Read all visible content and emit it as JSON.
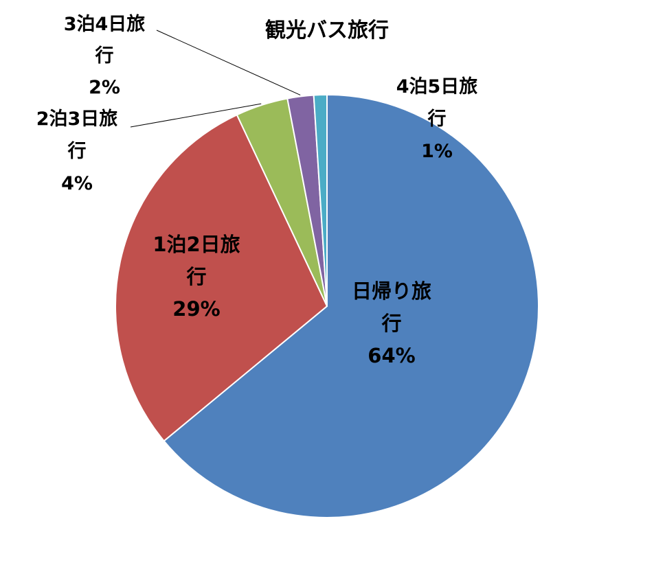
{
  "chart_data": {
    "type": "pie",
    "title": "観光バス旅行",
    "slices": [
      {
        "category": "日帰り旅行",
        "label_lines": [
          "日帰り旅",
          "行",
          "64%"
        ],
        "value": 64,
        "color": "#4F81BD"
      },
      {
        "category": "1泊2日旅行",
        "label_lines": [
          "1泊2日旅",
          "行",
          "29%"
        ],
        "value": 29,
        "color": "#C0504D"
      },
      {
        "category": "2泊3日旅行",
        "label_lines": [
          "2泊3日旅",
          "行",
          "4%"
        ],
        "value": 4,
        "color": "#9BBB59"
      },
      {
        "category": "3泊4日旅行",
        "label_lines": [
          "3泊4日旅",
          "行",
          "2%"
        ],
        "value": 2,
        "color": "#8064A2"
      },
      {
        "category": "4泊5日旅行",
        "label_lines": [
          "4泊5日旅",
          "行",
          "1%"
        ],
        "value": 1,
        "color": "#4BACC6"
      }
    ],
    "direction": "clockwise",
    "start": "top",
    "legend": "none"
  }
}
